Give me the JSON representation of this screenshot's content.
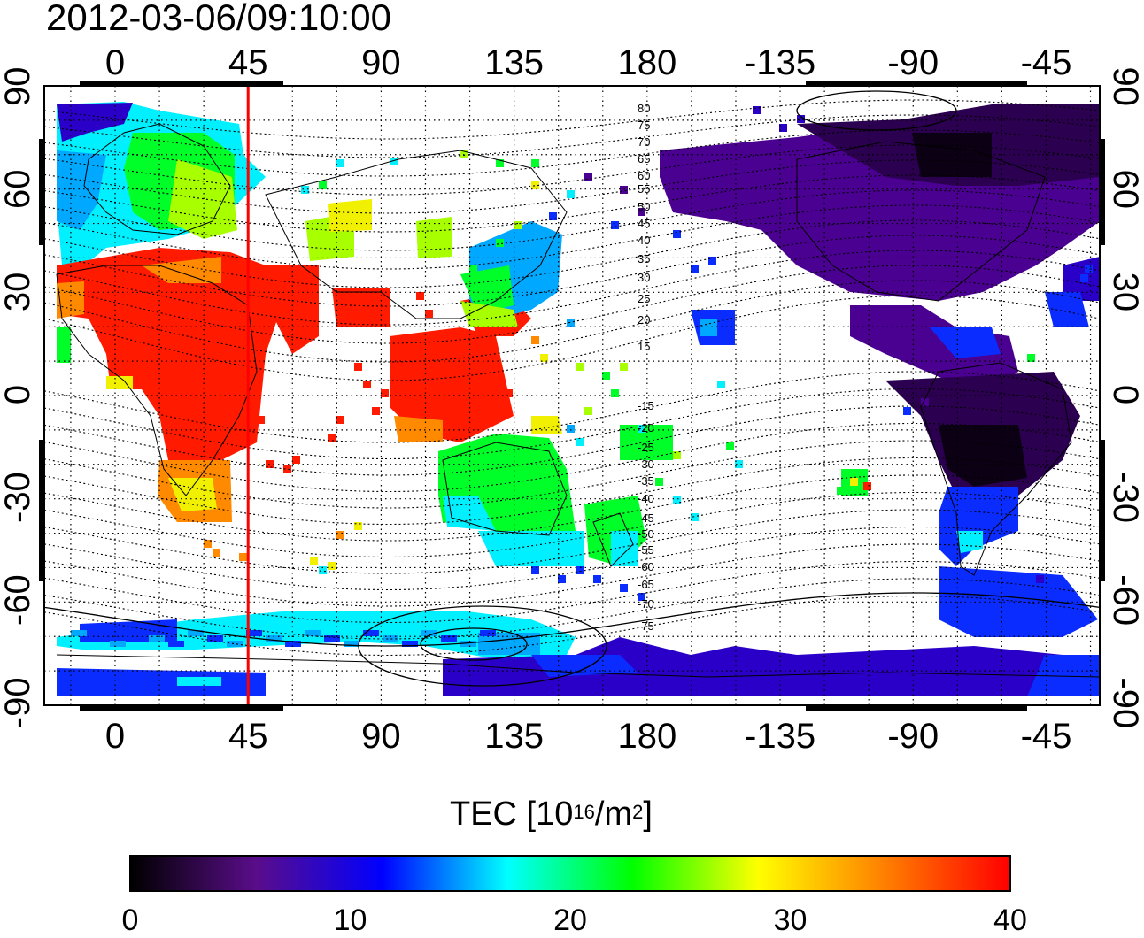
{
  "title": "2012-03-06/09:10:00",
  "map": {
    "type": "tec-world-map",
    "lon_ticks": [
      "0",
      "45",
      "90",
      "135",
      "180",
      "-135",
      "-90",
      "-45"
    ],
    "lat_ticks": [
      "90",
      "60",
      "30",
      "0",
      "-30",
      "-60",
      "-90"
    ],
    "contour_labels": [
      "80",
      "75",
      "70",
      "65",
      "60",
      "55",
      "50",
      "45",
      "40",
      "35",
      "30",
      "25",
      "20",
      "15",
      "-15",
      "-20",
      "-25",
      "-30",
      "-35",
      "-40",
      "-45",
      "-50",
      "-55",
      "-60",
      "-65",
      "-70",
      "-75"
    ],
    "marker_longitude": 45,
    "marker_color": "#ff0000",
    "grid": "dotted"
  },
  "colorbar": {
    "title_text": "TEC  [10",
    "title_exp": "16",
    "title_unit": "/m",
    "title_unit_exp": "2",
    "title_close": "]",
    "ticks": [
      "0",
      "10",
      "20",
      "30",
      "40"
    ],
    "range": [
      0,
      40
    ],
    "colors": [
      "#000000",
      "#5a0d8a",
      "#0000ff",
      "#00ffff",
      "#00ff00",
      "#ffff00",
      "#ff8000",
      "#ff0000"
    ]
  }
}
